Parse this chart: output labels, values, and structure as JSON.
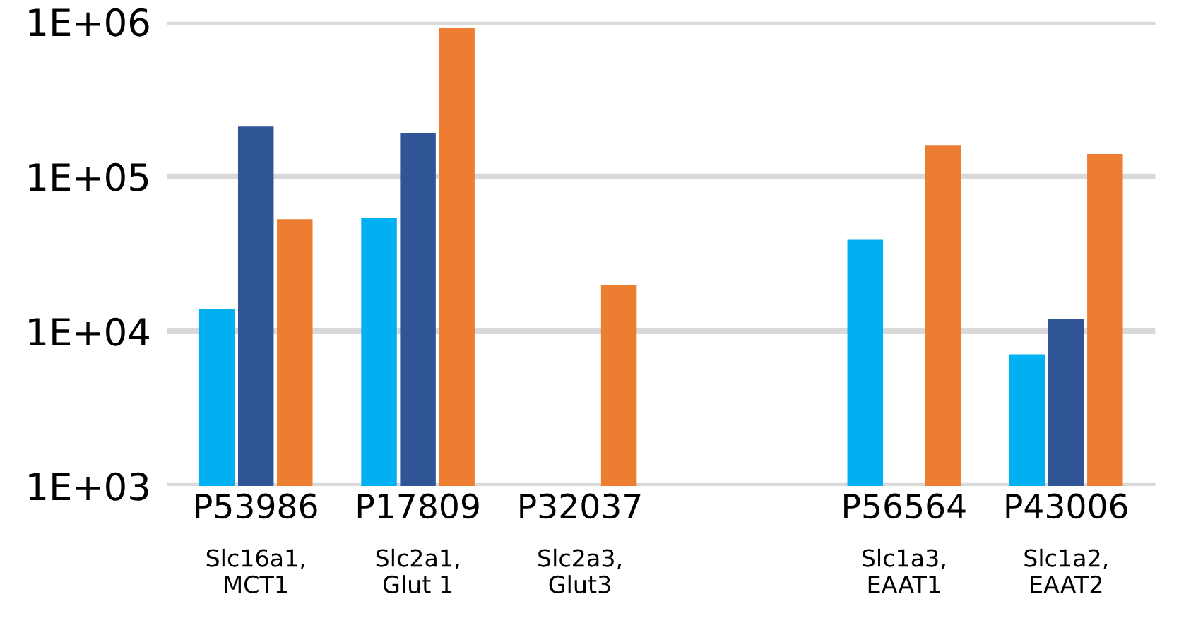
{
  "chart_data": {
    "type": "bar",
    "log": true,
    "categories": [
      "P53986\nSlc16a1,\nMCT1",
      "P17809\nSlc2a1,\nGlut 1",
      "P32037\nSlc2a3,\nGlut3",
      null,
      "P56564\nSlc1a3,\nEAAT1",
      "P43006\nSlc1a2,\nEAAT2"
    ],
    "series": [
      {
        "color": "#00b0f0",
        "values": [
          14000,
          54000,
          null,
          null,
          39000,
          7100
        ]
      },
      {
        "color": "#2f5597",
        "values": [
          210000,
          190000,
          null,
          null,
          null,
          12000
        ]
      },
      {
        "color": "#ed7d31",
        "values": [
          53000,
          910000,
          20000,
          null,
          160000,
          140000
        ]
      }
    ],
    "ylim": [
      1000,
      1000000
    ],
    "yticks": [
      {
        "value": 1000,
        "label": "1E+03"
      },
      {
        "value": 10000,
        "label": "1E+04"
      },
      {
        "value": 100000,
        "label": "1E+05"
      },
      {
        "value": 1000000,
        "label": "1E+06"
      }
    ],
    "grid": "y"
  }
}
